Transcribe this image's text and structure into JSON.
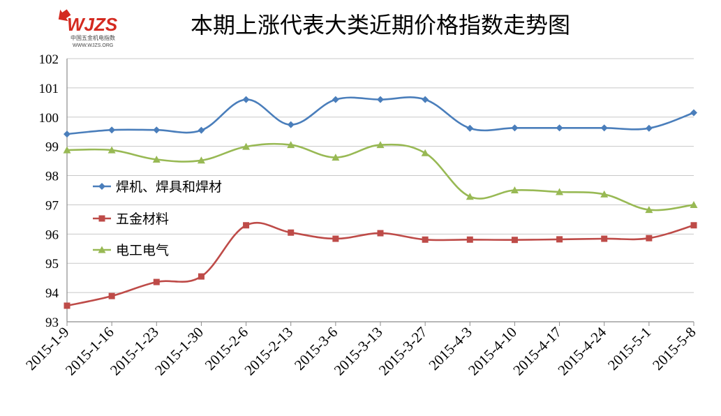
{
  "logo": {
    "mark": "WJZS",
    "name_cn": "中国五金机电指数",
    "url": "WWW.WJZS.ORG"
  },
  "chart_data": {
    "type": "line",
    "title": "本期上涨代表大类近期价格指数走势图",
    "xlabel": "",
    "ylabel": "",
    "ylim": [
      93,
      102
    ],
    "yticks": [
      "93",
      "94",
      "95",
      "96",
      "97",
      "98",
      "99",
      "100",
      "101",
      "102"
    ],
    "grid": true,
    "legend_position": "left-middle",
    "categories": [
      "2015-1-9",
      "2015-1-16",
      "2015-1-23",
      "2015-1-30",
      "2015-2-6",
      "2015-2-13",
      "2015-3-6",
      "2015-3-13",
      "2015-3-27",
      "2015-4-3",
      "2015-4-10",
      "2015-4-17",
      "2015-4-24",
      "2015-5-1",
      "2015-5-8"
    ],
    "series": [
      {
        "name": "焊机、焊具和焊材",
        "color": "#4a7ebb",
        "marker": "diamond",
        "values": [
          99.42,
          99.56,
          99.56,
          99.55,
          100.6,
          99.74,
          100.6,
          100.6,
          100.6,
          99.62,
          99.63,
          99.63,
          99.63,
          99.62,
          100.15
        ]
      },
      {
        "name": "五金材料",
        "color": "#be4b48",
        "marker": "square",
        "values": [
          93.55,
          93.88,
          94.36,
          94.55,
          96.3,
          96.05,
          95.84,
          96.03,
          95.81,
          95.81,
          95.8,
          95.82,
          95.84,
          95.86,
          96.3
        ]
      },
      {
        "name": "电工电气",
        "color": "#98b954",
        "marker": "triangle",
        "values": [
          98.87,
          98.87,
          98.55,
          98.52,
          98.99,
          99.05,
          98.62,
          99.05,
          98.77,
          97.28,
          97.5,
          97.44,
          97.36,
          96.83,
          97.0
        ]
      }
    ]
  }
}
